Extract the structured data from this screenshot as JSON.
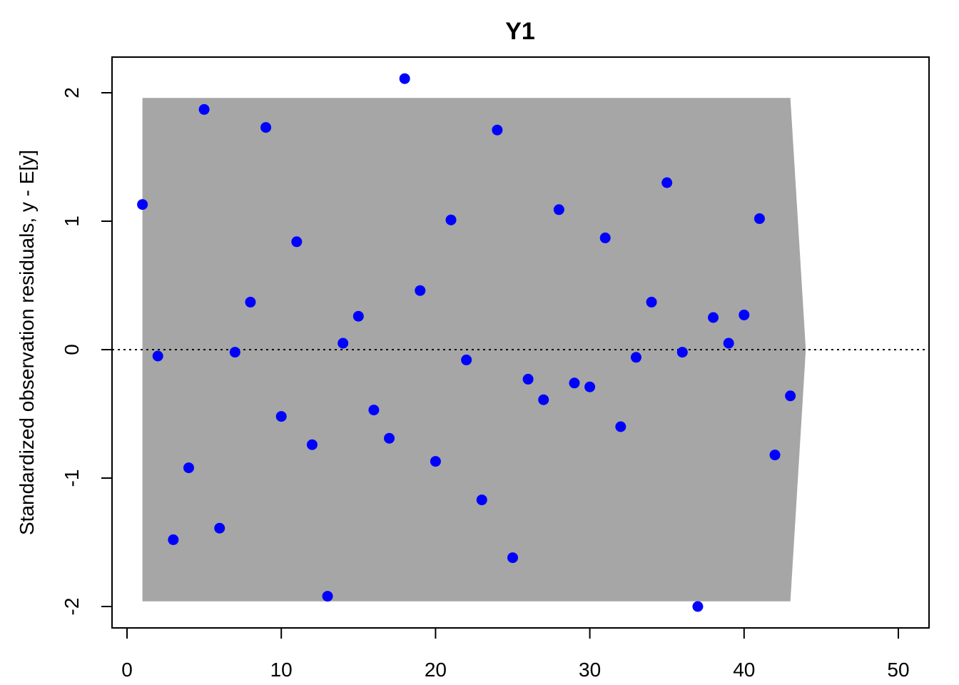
{
  "chart_data": {
    "type": "scatter",
    "title": "Y1",
    "xlabel": "",
    "ylabel": "Standardized observation residuals, y - E[y]",
    "xlim": [
      0,
      50
    ],
    "ylim": [
      -2,
      2
    ],
    "x_ticks": [
      "0",
      "10",
      "20",
      "30",
      "40",
      "50"
    ],
    "y_ticks": [
      "-2",
      "-1",
      "0",
      "1",
      "2"
    ],
    "grid": false,
    "reference_line": {
      "y": 0,
      "style": "dotted"
    },
    "band": {
      "color": "#a6a6a6",
      "upper": [
        [
          1,
          1.96
        ],
        [
          43,
          1.96
        ],
        [
          44,
          0
        ]
      ],
      "lower": [
        [
          44,
          0
        ],
        [
          43,
          -1.96
        ],
        [
          1,
          -1.96
        ]
      ]
    },
    "point_color": "#0000ff",
    "series": [
      {
        "x": [
          1,
          2,
          3,
          4,
          5,
          6,
          7,
          8,
          9,
          10,
          11,
          12,
          13,
          14,
          15,
          16,
          17,
          18,
          19,
          20,
          21,
          22,
          23,
          24,
          25,
          26,
          27,
          28,
          29,
          30,
          31,
          32,
          33,
          34,
          35,
          36,
          37,
          38,
          39,
          40,
          41,
          42,
          43
        ],
        "values": [
          1.13,
          -0.05,
          -1.48,
          -0.92,
          1.87,
          -1.39,
          -0.02,
          0.37,
          1.73,
          -0.52,
          0.84,
          -0.74,
          -1.92,
          0.05,
          0.26,
          -0.47,
          -0.69,
          2.11,
          0.46,
          -0.87,
          1.01,
          -0.08,
          -1.17,
          1.71,
          -1.62,
          -0.23,
          -0.39,
          1.09,
          -0.26,
          -0.29,
          0.87,
          -0.6,
          -0.06,
          0.37,
          1.3,
          -0.02,
          -2.0,
          0.25,
          0.05,
          0.27,
          1.02,
          -0.82,
          -0.36
        ]
      }
    ]
  }
}
